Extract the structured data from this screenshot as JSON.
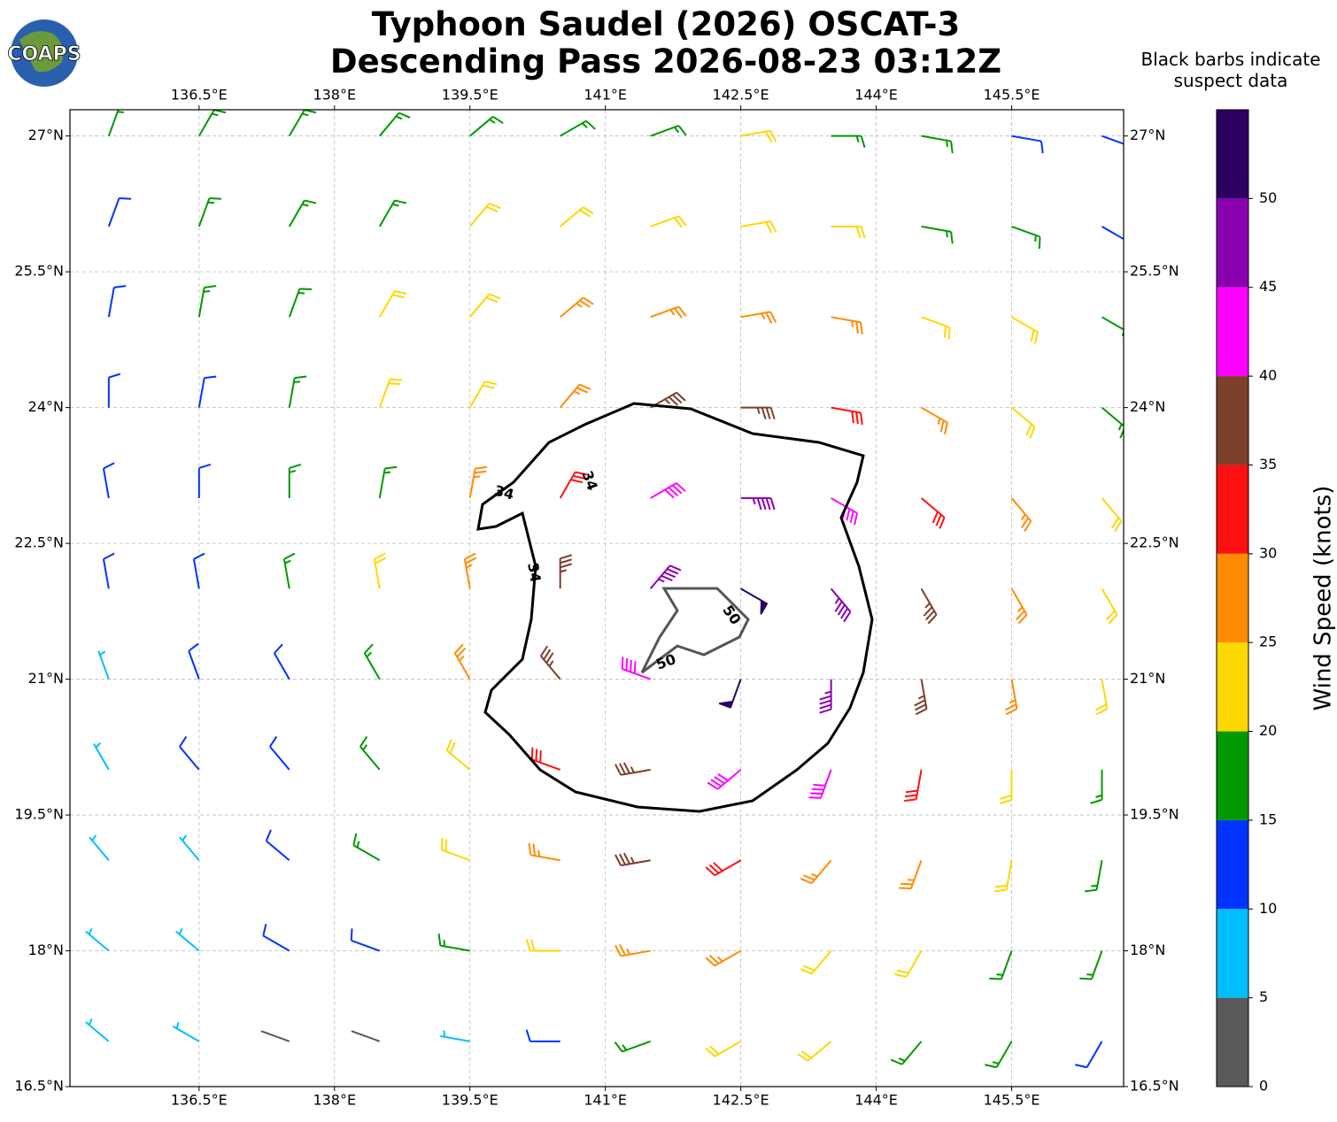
{
  "header": {
    "logo": "COAPS",
    "title_line1": "Typhoon Saudel (2026) OSCAT-3",
    "title_line2": "Descending Pass 2026-08-23 03:12Z",
    "note": [
      "Black barbs indicate",
      "suspect data"
    ]
  },
  "map": {
    "xlim": [
      135.07,
      146.74
    ],
    "ylim": [
      16.5,
      27.29
    ],
    "xticks": [
      {
        "value": 136.5,
        "label": "136.5°E"
      },
      {
        "value": 138,
        "label": "138°E"
      },
      {
        "value": 139.5,
        "label": "139.5°E"
      },
      {
        "value": 141,
        "label": "141°E"
      },
      {
        "value": 142.5,
        "label": "142.5°E"
      },
      {
        "value": 144,
        "label": "144°E"
      },
      {
        "value": 145.5,
        "label": "145.5°E"
      }
    ],
    "yticks": [
      {
        "value": 16.5,
        "label": "16.5°N"
      },
      {
        "value": 18,
        "label": "18°N"
      },
      {
        "value": 19.5,
        "label": "19.5°N"
      },
      {
        "value": 21,
        "label": "21°N"
      },
      {
        "value": 22.5,
        "label": "22.5°N"
      },
      {
        "value": 24,
        "label": "24°N"
      },
      {
        "value": 25.5,
        "label": "25.5°N"
      },
      {
        "value": 27,
        "label": "27°N"
      }
    ],
    "grid": true,
    "contour_levels": [
      34,
      50
    ],
    "barbs": {
      "lon": [
        135.5,
        136.5,
        137.5,
        138.5,
        139.5,
        140.5,
        141.5,
        142.5,
        143.5,
        144.5,
        145.5,
        146.5
      ],
      "lat": [
        27,
        26,
        25,
        24,
        23,
        22,
        21,
        20,
        19,
        18,
        17
      ],
      "speed": [
        [
          15,
          15,
          15,
          15,
          15,
          15,
          18,
          20,
          18,
          15,
          12,
          10
        ],
        [
          12,
          15,
          15,
          18,
          20,
          20,
          22,
          22,
          20,
          18,
          15,
          12
        ],
        [
          12,
          15,
          15,
          20,
          22,
          25,
          27,
          27,
          25,
          22,
          20,
          15
        ],
        [
          12,
          12,
          15,
          20,
          22,
          28,
          35,
          35,
          32,
          25,
          20,
          18
        ],
        [
          10,
          12,
          15,
          18,
          25,
          32,
          40,
          45,
          40,
          32,
          25,
          20
        ],
        [
          10,
          12,
          15,
          20,
          28,
          38,
          45,
          50,
          45,
          35,
          25,
          20
        ],
        [
          8,
          10,
          12,
          18,
          25,
          35,
          42,
          50,
          45,
          35,
          25,
          20
        ],
        [
          8,
          10,
          12,
          15,
          22,
          30,
          38,
          40,
          40,
          32,
          22,
          18
        ],
        [
          7,
          8,
          12,
          15,
          20,
          28,
          35,
          32,
          28,
          25,
          20,
          15
        ],
        [
          7,
          8,
          10,
          12,
          15,
          22,
          28,
          25,
          22,
          20,
          18,
          15
        ],
        [
          6,
          6,
          3,
          3,
          8,
          12,
          15,
          20,
          20,
          18,
          15,
          12
        ]
      ],
      "dir": [
        [
          20,
          30,
          30,
          40,
          50,
          60,
          70,
          80,
          90,
          100,
          100,
          110
        ],
        [
          20,
          20,
          30,
          30,
          40,
          50,
          70,
          80,
          90,
          100,
          110,
          120
        ],
        [
          10,
          10,
          20,
          30,
          40,
          50,
          70,
          80,
          100,
          110,
          120,
          120
        ],
        [
          0,
          10,
          10,
          20,
          30,
          40,
          60,
          90,
          100,
          120,
          130,
          130
        ],
        [
          350,
          0,
          0,
          10,
          10,
          30,
          60,
          90,
          120,
          130,
          140,
          140
        ],
        [
          350,
          350,
          350,
          350,
          350,
          0,
          40,
          120,
          140,
          150,
          150,
          150
        ],
        [
          340,
          340,
          330,
          330,
          330,
          320,
          290,
          200,
          180,
          170,
          170,
          170
        ],
        [
          330,
          320,
          320,
          320,
          310,
          290,
          260,
          230,
          200,
          190,
          180,
          180
        ],
        [
          320,
          320,
          310,
          300,
          290,
          280,
          260,
          240,
          220,
          200,
          190,
          190
        ],
        [
          310,
          310,
          300,
          290,
          280,
          270,
          260,
          240,
          220,
          210,
          200,
          200
        ],
        [
          310,
          300,
          290,
          290,
          280,
          270,
          250,
          240,
          230,
          220,
          210,
          210
        ]
      ]
    }
  },
  "colorbar": {
    "label": "Wind Speed (knots)",
    "lim": [
      0,
      55
    ],
    "ticks": [
      0,
      5,
      10,
      15,
      20,
      25,
      30,
      35,
      40,
      45,
      50
    ],
    "colors": [
      "#5a5a5a",
      "#00bfff",
      "#0033ff",
      "#009900",
      "#ffd700",
      "#ff8c00",
      "#ff1010",
      "#7b3f2a",
      "#ff00ff",
      "#8a00b0",
      "#2b0060"
    ]
  }
}
